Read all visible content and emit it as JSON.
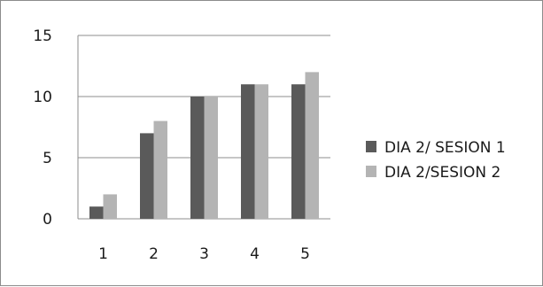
{
  "chart_data": {
    "type": "bar",
    "categories": [
      "1",
      "2",
      "3",
      "4",
      "5"
    ],
    "series": [
      {
        "name": "DIA 2/ SESION 1",
        "values": [
          1,
          7,
          10,
          11,
          11
        ],
        "color": "#5a5a5a"
      },
      {
        "name": "DIA 2/SESION 2",
        "values": [
          2,
          8,
          10,
          11,
          12
        ],
        "color": "#b4b4b4"
      }
    ],
    "yticks": [
      "0",
      "5",
      "10",
      "15"
    ],
    "ylim": [
      0,
      15
    ],
    "grid": true,
    "legend_position": "right"
  }
}
